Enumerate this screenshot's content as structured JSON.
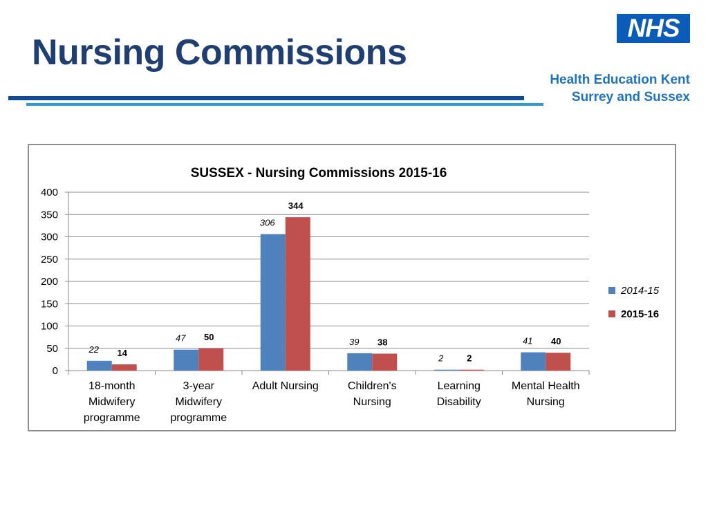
{
  "slide": {
    "title": "Nursing Commissions",
    "logo_text": "NHS",
    "org_line1": "Health Education Kent",
    "org_line2": "Surrey and Sussex"
  },
  "colors": {
    "title": "#1f3f73",
    "series_2014": "#4f81bd",
    "series_2015": "#c0504d"
  },
  "chart_data": {
    "type": "bar",
    "title": "SUSSEX - Nursing Commissions 2015-16",
    "categories": [
      [
        "18-month",
        "Midwifery",
        "programme"
      ],
      [
        "3-year",
        "Midwifery",
        "programme"
      ],
      [
        "Adult Nursing"
      ],
      [
        "Children's",
        "Nursing"
      ],
      [
        "Learning",
        "Disability"
      ],
      [
        "Mental Health",
        "Nursing"
      ]
    ],
    "series": [
      {
        "name": "2014-15",
        "values": [
          22,
          47,
          306,
          39,
          2,
          41
        ]
      },
      {
        "name": "2015-16",
        "values": [
          14,
          50,
          344,
          38,
          2,
          40
        ]
      }
    ],
    "ylim": [
      0,
      400
    ],
    "yticks": [
      0,
      50,
      100,
      150,
      200,
      250,
      300,
      350,
      400
    ],
    "grid": true,
    "legend": "right",
    "xlabel": "",
    "ylabel": ""
  }
}
